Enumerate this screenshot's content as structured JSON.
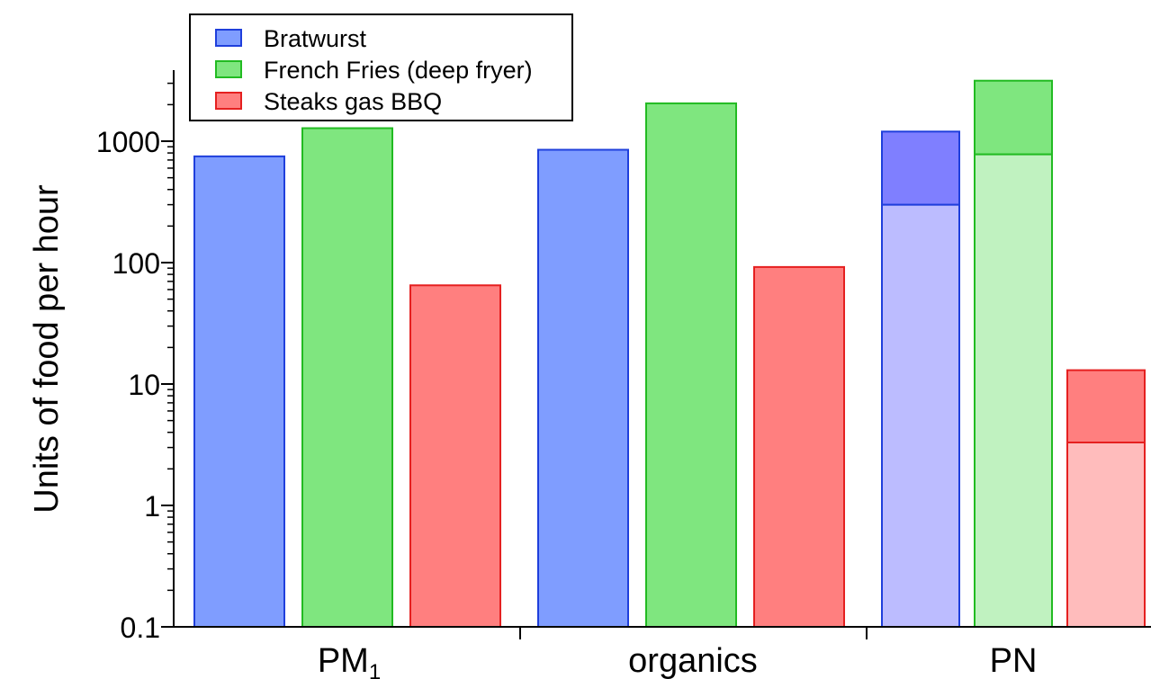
{
  "chart_data": {
    "type": "bar",
    "ylabel": "Units of food per hour",
    "yscale": "log",
    "ylim": [
      0.1,
      5000
    ],
    "grid": false,
    "legend_position": "top-left",
    "yticks": [
      {
        "value": 0.1,
        "label": "0.1"
      },
      {
        "value": 1,
        "label": "1"
      },
      {
        "value": 10,
        "label": "10"
      },
      {
        "value": 100,
        "label": "100"
      },
      {
        "value": 1000,
        "label": "1000"
      }
    ],
    "categories": [
      {
        "label": "PM",
        "subscript": "1"
      },
      {
        "label": "organics",
        "subscript": ""
      },
      {
        "label": "PN",
        "subscript": ""
      }
    ],
    "series": [
      {
        "name": "Bratwurst",
        "color": "#7f9dff",
        "edge": "#1f3fdc",
        "light_color": "#bcbcff",
        "dark_color": "#7f7fff",
        "values": [
          750,
          850,
          1200
        ],
        "lower_values": [
          null,
          null,
          300
        ]
      },
      {
        "name": "French Fries (deep fryer)",
        "color": "#7fe67f",
        "edge": "#22bb22",
        "light_color": "#c0f2c0",
        "dark_color": "#7fe67f",
        "values": [
          1280,
          2050,
          3150
        ],
        "lower_values": [
          null,
          null,
          780
        ]
      },
      {
        "name": "Steaks gas BBQ",
        "color": "#ff7f7f",
        "edge": "#e52020",
        "light_color": "#ffbcbc",
        "dark_color": "#ff7f7f",
        "values": [
          65,
          92,
          13
        ],
        "lower_values": [
          null,
          null,
          3.3
        ]
      }
    ]
  }
}
